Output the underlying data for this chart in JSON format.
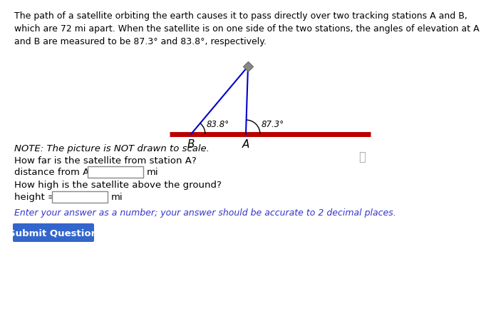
{
  "title_text": "The path of a satellite orbiting the earth causes it to pass directly over two tracking stations A and B,\nwhich are 72 mi apart. When the satellite is on one side of the two stations, the angles of elevation at A\nand B are measured to be 87.3° and 83.8°, respectively.",
  "note_text": "NOTE: The picture is NOT drawn to scale.",
  "question1": "How far is the satellite from station A?",
  "label_dist": "distance from A =",
  "mi1": "mi",
  "question2": "How high is the satellite above the ground?",
  "label_height": "height =",
  "mi2": "mi",
  "instruction": "Enter your answer as a number; your answer should be accurate to 2 decimal places.",
  "button_text": "Submit Question",
  "label_B": "B",
  "label_A": "A",
  "angle_label_B": "83.8°",
  "angle_label_A": "87.3°",
  "line_color": "#bb0000",
  "triangle_color": "#0000cc",
  "satellite_color": "#888888",
  "bg_color": "#ffffff",
  "button_color": "#3366cc",
  "instruction_color": "#3333cc",
  "title_fontsize": 9.0,
  "body_fontsize": 9.5,
  "note_fontsize": 9.5,
  "small_fontsize": 8.5,
  "btn_fontsize": 9.5
}
